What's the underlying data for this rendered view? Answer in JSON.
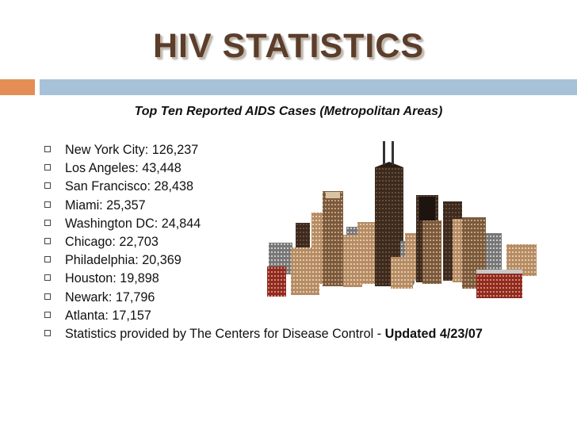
{
  "slide": {
    "title": "HIV STATISTICS",
    "subtitle": "Top Ten Reported AIDS Cases (Metropolitan Areas)",
    "items": [
      "New York City: 126,237",
      "Los Angeles: 43,448",
      "San Francisco: 28,438",
      "Miami: 25,357",
      "Washington DC: 24,844",
      "Chicago: 22,703",
      "Philadelphia: 20,369",
      "Houston: 19,898",
      "Newark: 17,796",
      "Atlanta: 17,157"
    ],
    "source_text": "Statistics provided by The Centers for Disease Control - ",
    "source_updated": "Updated 4/23/07"
  },
  "colors": {
    "title": "#5a3d2b",
    "accent_orange": "#e48e56",
    "accent_blue": "#a7c2d8"
  },
  "illustration": "city-skyline-clipart"
}
